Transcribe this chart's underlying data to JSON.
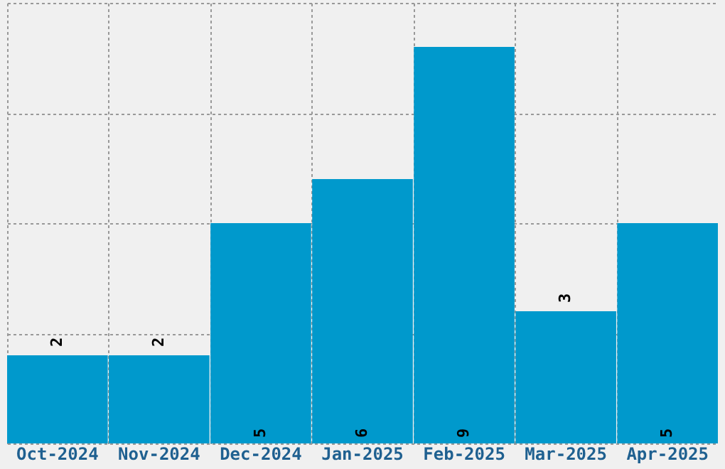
{
  "chart_data": {
    "type": "bar",
    "categories": [
      "Oct-2024",
      "Nov-2024",
      "Dec-2024",
      "Jan-2025",
      "Feb-2025",
      "Mar-2025",
      "Apr-2025"
    ],
    "values": [
      2,
      2,
      5,
      6,
      9,
      3,
      5
    ],
    "color": "#0099cc",
    "ylim": [
      0,
      10
    ],
    "yticks": [
      {
        "value": 0,
        "label": null
      },
      {
        "value": 2.5,
        "label": null
      },
      {
        "value": 5,
        "label": null
      },
      {
        "value": 7.5,
        "label": null
      },
      {
        "value": 10,
        "label": null
      }
    ],
    "grid": true,
    "tick_labels": "x",
    "data_labels": true
  }
}
